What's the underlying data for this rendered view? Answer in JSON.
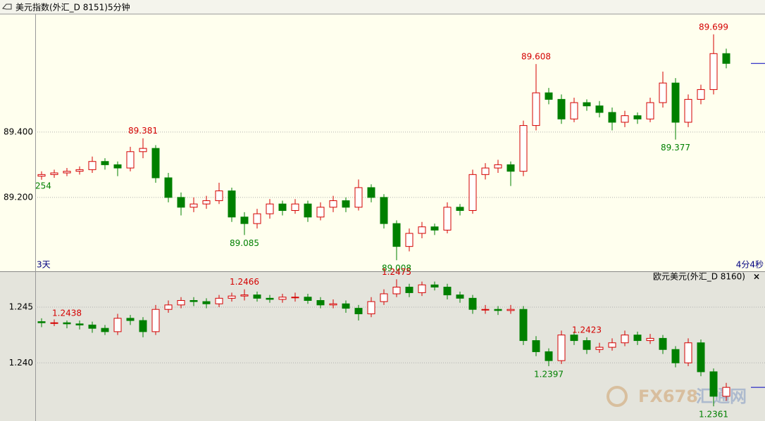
{
  "header": {
    "title": "美元指数(外汇_D 8151)5分钟"
  },
  "chart_data": [
    {
      "type": "candlestick",
      "ylim": [
        88.974,
        89.761
      ],
      "grid": true,
      "yticks": [
        {
          "value": 89.4,
          "label": "89.400"
        },
        {
          "value": 89.2,
          "label": "89.200"
        }
      ],
      "up_color": "#d40000",
      "down_color": "#008000",
      "start_label": "254",
      "range_label": "3天",
      "timer_label": "4分4秒",
      "candles": [
        [
          89.265,
          89.28,
          89.254,
          89.27
        ],
        [
          89.27,
          89.285,
          89.26,
          89.275
        ],
        [
          89.275,
          89.29,
          89.265,
          89.28
        ],
        [
          89.28,
          89.295,
          89.27,
          89.285
        ],
        [
          89.285,
          89.325,
          89.275,
          89.31
        ],
        [
          89.31,
          89.32,
          89.285,
          89.3
        ],
        [
          89.3,
          89.31,
          89.265,
          89.29
        ],
        [
          89.29,
          89.355,
          89.28,
          89.34
        ],
        [
          89.34,
          89.381,
          89.32,
          89.35
        ],
        [
          89.35,
          89.36,
          89.245,
          89.26
        ],
        [
          89.26,
          89.275,
          89.185,
          89.2
        ],
        [
          89.2,
          89.215,
          89.145,
          89.17
        ],
        [
          89.17,
          89.2,
          89.155,
          89.18
        ],
        [
          89.18,
          89.205,
          89.165,
          89.19
        ],
        [
          89.19,
          89.245,
          89.18,
          89.22
        ],
        [
          89.22,
          89.23,
          89.125,
          89.14
        ],
        [
          89.14,
          89.155,
          89.085,
          89.12
        ],
        [
          89.12,
          89.165,
          89.105,
          89.15
        ],
        [
          89.15,
          89.195,
          89.135,
          89.18
        ],
        [
          89.18,
          89.19,
          89.145,
          89.16
        ],
        [
          89.16,
          89.195,
          89.15,
          89.18
        ],
        [
          89.18,
          89.19,
          89.125,
          89.14
        ],
        [
          89.14,
          89.185,
          89.13,
          89.17
        ],
        [
          89.17,
          89.205,
          89.155,
          89.19
        ],
        [
          89.19,
          89.2,
          89.155,
          89.17
        ],
        [
          89.17,
          89.255,
          89.16,
          89.23
        ],
        [
          89.23,
          89.24,
          89.185,
          89.2
        ],
        [
          89.2,
          89.21,
          89.105,
          89.12
        ],
        [
          89.12,
          89.13,
          89.008,
          89.05
        ],
        [
          89.05,
          89.105,
          89.035,
          89.09
        ],
        [
          89.09,
          89.125,
          89.075,
          89.11
        ],
        [
          89.11,
          89.12,
          89.085,
          89.1
        ],
        [
          89.1,
          89.185,
          89.09,
          89.17
        ],
        [
          89.17,
          89.18,
          89.145,
          89.16
        ],
        [
          89.16,
          89.285,
          89.15,
          89.27
        ],
        [
          89.27,
          89.305,
          89.255,
          89.29
        ],
        [
          89.29,
          89.315,
          89.275,
          89.3
        ],
        [
          89.3,
          89.31,
          89.235,
          89.28
        ],
        [
          89.28,
          89.435,
          89.265,
          89.42
        ],
        [
          89.42,
          89.608,
          89.405,
          89.52
        ],
        [
          89.52,
          89.535,
          89.485,
          89.5
        ],
        [
          89.5,
          89.515,
          89.425,
          89.44
        ],
        [
          89.44,
          89.505,
          89.43,
          89.49
        ],
        [
          89.49,
          89.5,
          89.465,
          89.48
        ],
        [
          89.48,
          89.495,
          89.445,
          89.46
        ],
        [
          89.46,
          89.475,
          89.405,
          89.43
        ],
        [
          89.43,
          89.465,
          89.415,
          89.45
        ],
        [
          89.45,
          89.46,
          89.425,
          89.44
        ],
        [
          89.44,
          89.505,
          89.43,
          89.49
        ],
        [
          89.49,
          89.585,
          89.475,
          89.55
        ],
        [
          89.55,
          89.565,
          89.377,
          89.43
        ],
        [
          89.43,
          89.515,
          89.415,
          89.5
        ],
        [
          89.5,
          89.545,
          89.485,
          89.53
        ],
        [
          89.53,
          89.699,
          89.515,
          89.64
        ],
        [
          89.64,
          89.655,
          89.595,
          89.61
        ]
      ],
      "annotations": [
        {
          "value": 89.381,
          "label": "89.381"
        },
        {
          "value": 89.085,
          "label": "89.085"
        },
        {
          "value": 89.008,
          "label": "89.008"
        },
        {
          "value": 89.608,
          "label": "89.608"
        },
        {
          "value": 89.377,
          "label": "89.377"
        },
        {
          "value": 89.699,
          "label": "89.699"
        }
      ]
    },
    {
      "type": "candlestick",
      "title": "欧元美元(外汇_D 8160)",
      "ylim": [
        1.23478,
        1.24822
      ],
      "grid": true,
      "yticks": [
        {
          "value": 1.245,
          "label": "1.245"
        },
        {
          "value": 1.24,
          "label": "1.240"
        }
      ],
      "up_color": "#d40000",
      "down_color": "#008000",
      "candles": [
        [
          1.2437,
          1.244,
          1.2432,
          1.2436
        ],
        [
          1.2436,
          1.2439,
          1.2433,
          1.2436
        ],
        [
          1.2436,
          1.2438,
          1.2431,
          1.2435
        ],
        [
          1.2435,
          1.2438,
          1.243,
          1.2434
        ],
        [
          1.2434,
          1.2437,
          1.2427,
          1.2431
        ],
        [
          1.2431,
          1.2434,
          1.2425,
          1.2428
        ],
        [
          1.2428,
          1.2444,
          1.2425,
          1.244
        ],
        [
          1.244,
          1.2443,
          1.2434,
          1.2438
        ],
        [
          1.2438,
          1.2441,
          1.2423,
          1.2428
        ],
        [
          1.2428,
          1.2452,
          1.2425,
          1.2448
        ],
        [
          1.2448,
          1.2456,
          1.2445,
          1.2452
        ],
        [
          1.2452,
          1.2459,
          1.2449,
          1.2456
        ],
        [
          1.2456,
          1.2459,
          1.2451,
          1.2455
        ],
        [
          1.2455,
          1.2458,
          1.2449,
          1.2453
        ],
        [
          1.2453,
          1.2461,
          1.245,
          1.2458
        ],
        [
          1.2458,
          1.2463,
          1.2455,
          1.246
        ],
        [
          1.246,
          1.2466,
          1.2456,
          1.2461
        ],
        [
          1.2461,
          1.2464,
          1.2455,
          1.2458
        ],
        [
          1.2458,
          1.2461,
          1.2454,
          1.2457
        ],
        [
          1.2457,
          1.2462,
          1.2454,
          1.2459
        ],
        [
          1.2459,
          1.2463,
          1.2455,
          1.2459
        ],
        [
          1.2459,
          1.2462,
          1.2453,
          1.2456
        ],
        [
          1.2456,
          1.2459,
          1.2449,
          1.2452
        ],
        [
          1.2452,
          1.2457,
          1.2449,
          1.2453
        ],
        [
          1.2453,
          1.2456,
          1.2445,
          1.2449
        ],
        [
          1.2449,
          1.2452,
          1.2438,
          1.2444
        ],
        [
          1.2444,
          1.2459,
          1.2441,
          1.2455
        ],
        [
          1.2455,
          1.2466,
          1.2452,
          1.2462
        ],
        [
          1.2462,
          1.2475,
          1.2459,
          1.2468
        ],
        [
          1.2468,
          1.2471,
          1.2459,
          1.2463
        ],
        [
          1.2463,
          1.2473,
          1.246,
          1.247
        ],
        [
          1.247,
          1.2473,
          1.2465,
          1.2468
        ],
        [
          1.2468,
          1.2471,
          1.2457,
          1.2461
        ],
        [
          1.2461,
          1.2464,
          1.2454,
          1.2458
        ],
        [
          1.2458,
          1.2461,
          1.2444,
          1.2448
        ],
        [
          1.2448,
          1.2452,
          1.2444,
          1.2448
        ],
        [
          1.2448,
          1.2451,
          1.2443,
          1.2447
        ],
        [
          1.2447,
          1.2452,
          1.2444,
          1.2448
        ],
        [
          1.2448,
          1.2451,
          1.2416,
          1.242
        ],
        [
          1.242,
          1.2424,
          1.2406,
          1.241
        ],
        [
          1.241,
          1.2413,
          1.2397,
          1.2402
        ],
        [
          1.2402,
          1.2429,
          1.2399,
          1.2425
        ],
        [
          1.2425,
          1.2428,
          1.2416,
          1.242
        ],
        [
          1.242,
          1.2423,
          1.2408,
          1.2412
        ],
        [
          1.2412,
          1.2418,
          1.2409,
          1.2414
        ],
        [
          1.2414,
          1.2422,
          1.2411,
          1.2418
        ],
        [
          1.2418,
          1.2429,
          1.2415,
          1.2425
        ],
        [
          1.2425,
          1.2428,
          1.2416,
          1.242
        ],
        [
          1.242,
          1.2426,
          1.2417,
          1.2422
        ],
        [
          1.2422,
          1.2425,
          1.2408,
          1.2412
        ],
        [
          1.2412,
          1.2415,
          1.2396,
          1.24
        ],
        [
          1.24,
          1.2422,
          1.2397,
          1.2418
        ],
        [
          1.2418,
          1.2421,
          1.2388,
          1.2392
        ],
        [
          1.2392,
          1.2395,
          1.2361,
          1.237
        ],
        [
          1.237,
          1.2382,
          1.2366,
          1.2378
        ]
      ],
      "annotations": [
        {
          "value": 1.2423,
          "label": "1.2423"
        },
        {
          "value": 1.2466,
          "label": "1.2466"
        },
        {
          "value": 1.2438,
          "label": "1.2438"
        },
        {
          "value": 1.2475,
          "label": "1.2475"
        },
        {
          "value": 1.2397,
          "label": "1.2397"
        },
        {
          "value": 1.2361,
          "label": "1.2361"
        }
      ]
    }
  ],
  "watermark": {
    "brand": "FX678",
    "name": "汇通网"
  }
}
